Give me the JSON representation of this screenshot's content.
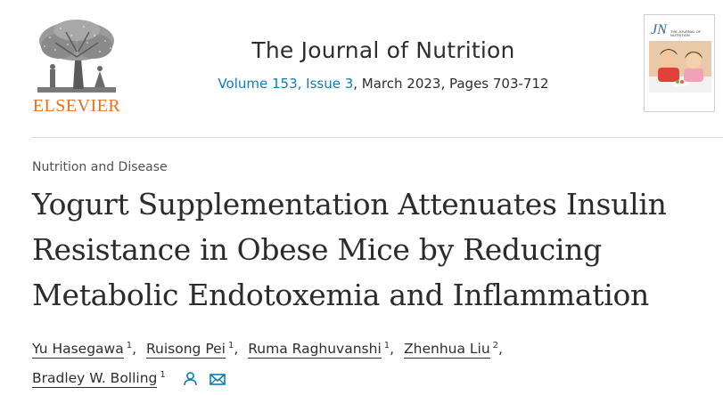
{
  "publisher": {
    "name": "ELSEVIER",
    "logo_icon": "tree-logo-icon",
    "accent": "#e9711c"
  },
  "journal": {
    "title": "The Journal of Nutrition",
    "volume_issue": "Volume 153, Issue 3",
    "date_pages": ", March 2023, Pages 703-712",
    "cover": {
      "title": "JN",
      "subtitle": "THE JOURNAL OF NUTRITION"
    },
    "link_color": "#0c7dbb"
  },
  "article": {
    "category": "Nutrition and Disease",
    "title": "Yogurt Supplementation Attenuates Insulin Resistance in Obese Mice by Reducing Metabolic Endotoxemia and Inflammation",
    "authors": [
      {
        "name": "Yu Hasegawa",
        "sup": "1",
        "sep": ","
      },
      {
        "name": "Ruisong Pei",
        "sup": "1",
        "sep": ","
      },
      {
        "name": "Ruma Raghuvanshi",
        "sup": "1",
        "sep": ","
      },
      {
        "name": "Zhenhua Liu",
        "sup": "2",
        "sep": ","
      },
      {
        "name": "Bradley W. Bolling",
        "sup": "1",
        "sep": ""
      }
    ],
    "icons": {
      "person": "person-icon",
      "email": "email-icon"
    },
    "icon_color": "#0c7dbb"
  }
}
